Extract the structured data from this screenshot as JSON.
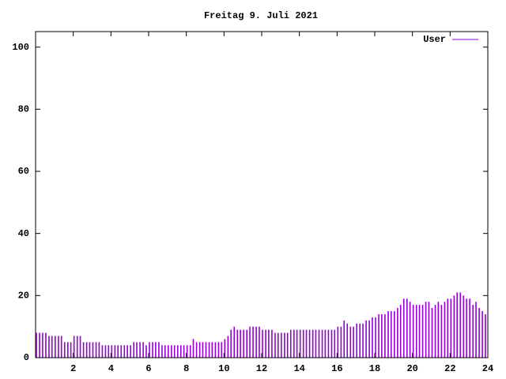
{
  "chart_data": {
    "type": "impulse",
    "title": "Freitag 9. Juli 2021",
    "x": [
      0,
      0.17,
      0.33,
      0.5,
      0.67,
      0.83,
      1,
      1.17,
      1.33,
      1.5,
      1.67,
      1.83,
      2,
      2.17,
      2.33,
      2.5,
      2.67,
      2.83,
      3,
      3.17,
      3.33,
      3.5,
      3.67,
      3.83,
      4,
      4.17,
      4.33,
      4.5,
      4.67,
      4.83,
      5,
      5.17,
      5.33,
      5.5,
      5.67,
      5.83,
      6,
      6.17,
      6.33,
      6.5,
      6.67,
      6.83,
      7,
      7.17,
      7.33,
      7.5,
      7.67,
      7.83,
      8,
      8.17,
      8.33,
      8.5,
      8.67,
      8.83,
      9,
      9.17,
      9.33,
      9.5,
      9.67,
      9.83,
      10,
      10.17,
      10.33,
      10.5,
      10.67,
      10.83,
      11,
      11.17,
      11.33,
      11.5,
      11.67,
      11.83,
      12,
      12.17,
      12.33,
      12.5,
      12.67,
      12.83,
      13,
      13.17,
      13.33,
      13.5,
      13.67,
      13.83,
      14,
      14.17,
      14.33,
      14.5,
      14.67,
      14.83,
      15,
      15.17,
      15.33,
      15.5,
      15.67,
      15.83,
      16,
      16.17,
      16.33,
      16.5,
      16.67,
      16.83,
      17,
      17.17,
      17.33,
      17.5,
      17.67,
      17.83,
      18,
      18.17,
      18.33,
      18.5,
      18.67,
      18.83,
      19,
      19.17,
      19.33,
      19.5,
      19.67,
      19.83,
      20,
      20.17,
      20.33,
      20.5,
      20.67,
      20.83,
      21,
      21.17,
      21.33,
      21.5,
      21.67,
      21.83,
      22,
      22.17,
      22.33,
      22.5,
      22.67,
      22.83,
      23,
      23.17,
      23.33,
      23.5,
      23.67,
      23.83
    ],
    "series": [
      {
        "name": "User",
        "color": "#9400d3",
        "values": [
          8,
          8,
          8,
          8,
          7,
          7,
          7,
          7,
          7,
          5,
          5,
          5,
          7,
          7,
          7,
          5,
          5,
          5,
          5,
          5,
          5,
          4,
          4,
          4,
          4,
          4,
          4,
          4,
          4,
          4,
          4,
          5,
          5,
          5,
          5,
          4,
          5,
          5,
          5,
          5,
          4,
          4,
          4,
          4,
          4,
          4,
          4,
          4,
          4,
          4,
          6,
          5,
          5,
          5,
          5,
          5,
          5,
          5,
          5,
          5,
          6,
          7,
          9,
          10,
          9,
          9,
          9,
          9,
          10,
          10,
          10,
          10,
          9,
          9,
          9,
          9,
          8,
          8,
          8,
          8,
          8,
          9,
          9,
          9,
          9,
          9,
          9,
          9,
          9,
          9,
          9,
          9,
          9,
          9,
          9,
          9,
          10,
          10,
          12,
          11,
          10,
          10,
          11,
          11,
          11,
          12,
          12,
          13,
          13,
          14,
          14,
          14,
          15,
          15,
          15,
          16,
          17,
          19,
          19,
          18,
          17,
          17,
          17,
          17,
          18,
          18,
          16,
          17,
          18,
          17,
          18,
          19,
          19,
          20,
          21,
          21,
          20,
          19,
          19,
          17,
          18,
          16,
          15,
          14
        ]
      }
    ],
    "xlim": [
      0,
      24
    ],
    "ylim": [
      0,
      105
    ],
    "xticks": [
      2,
      4,
      6,
      8,
      10,
      12,
      14,
      16,
      18,
      20,
      22,
      24
    ],
    "yticks": [
      0,
      20,
      40,
      60,
      80,
      100
    ],
    "legend": "top-right"
  }
}
